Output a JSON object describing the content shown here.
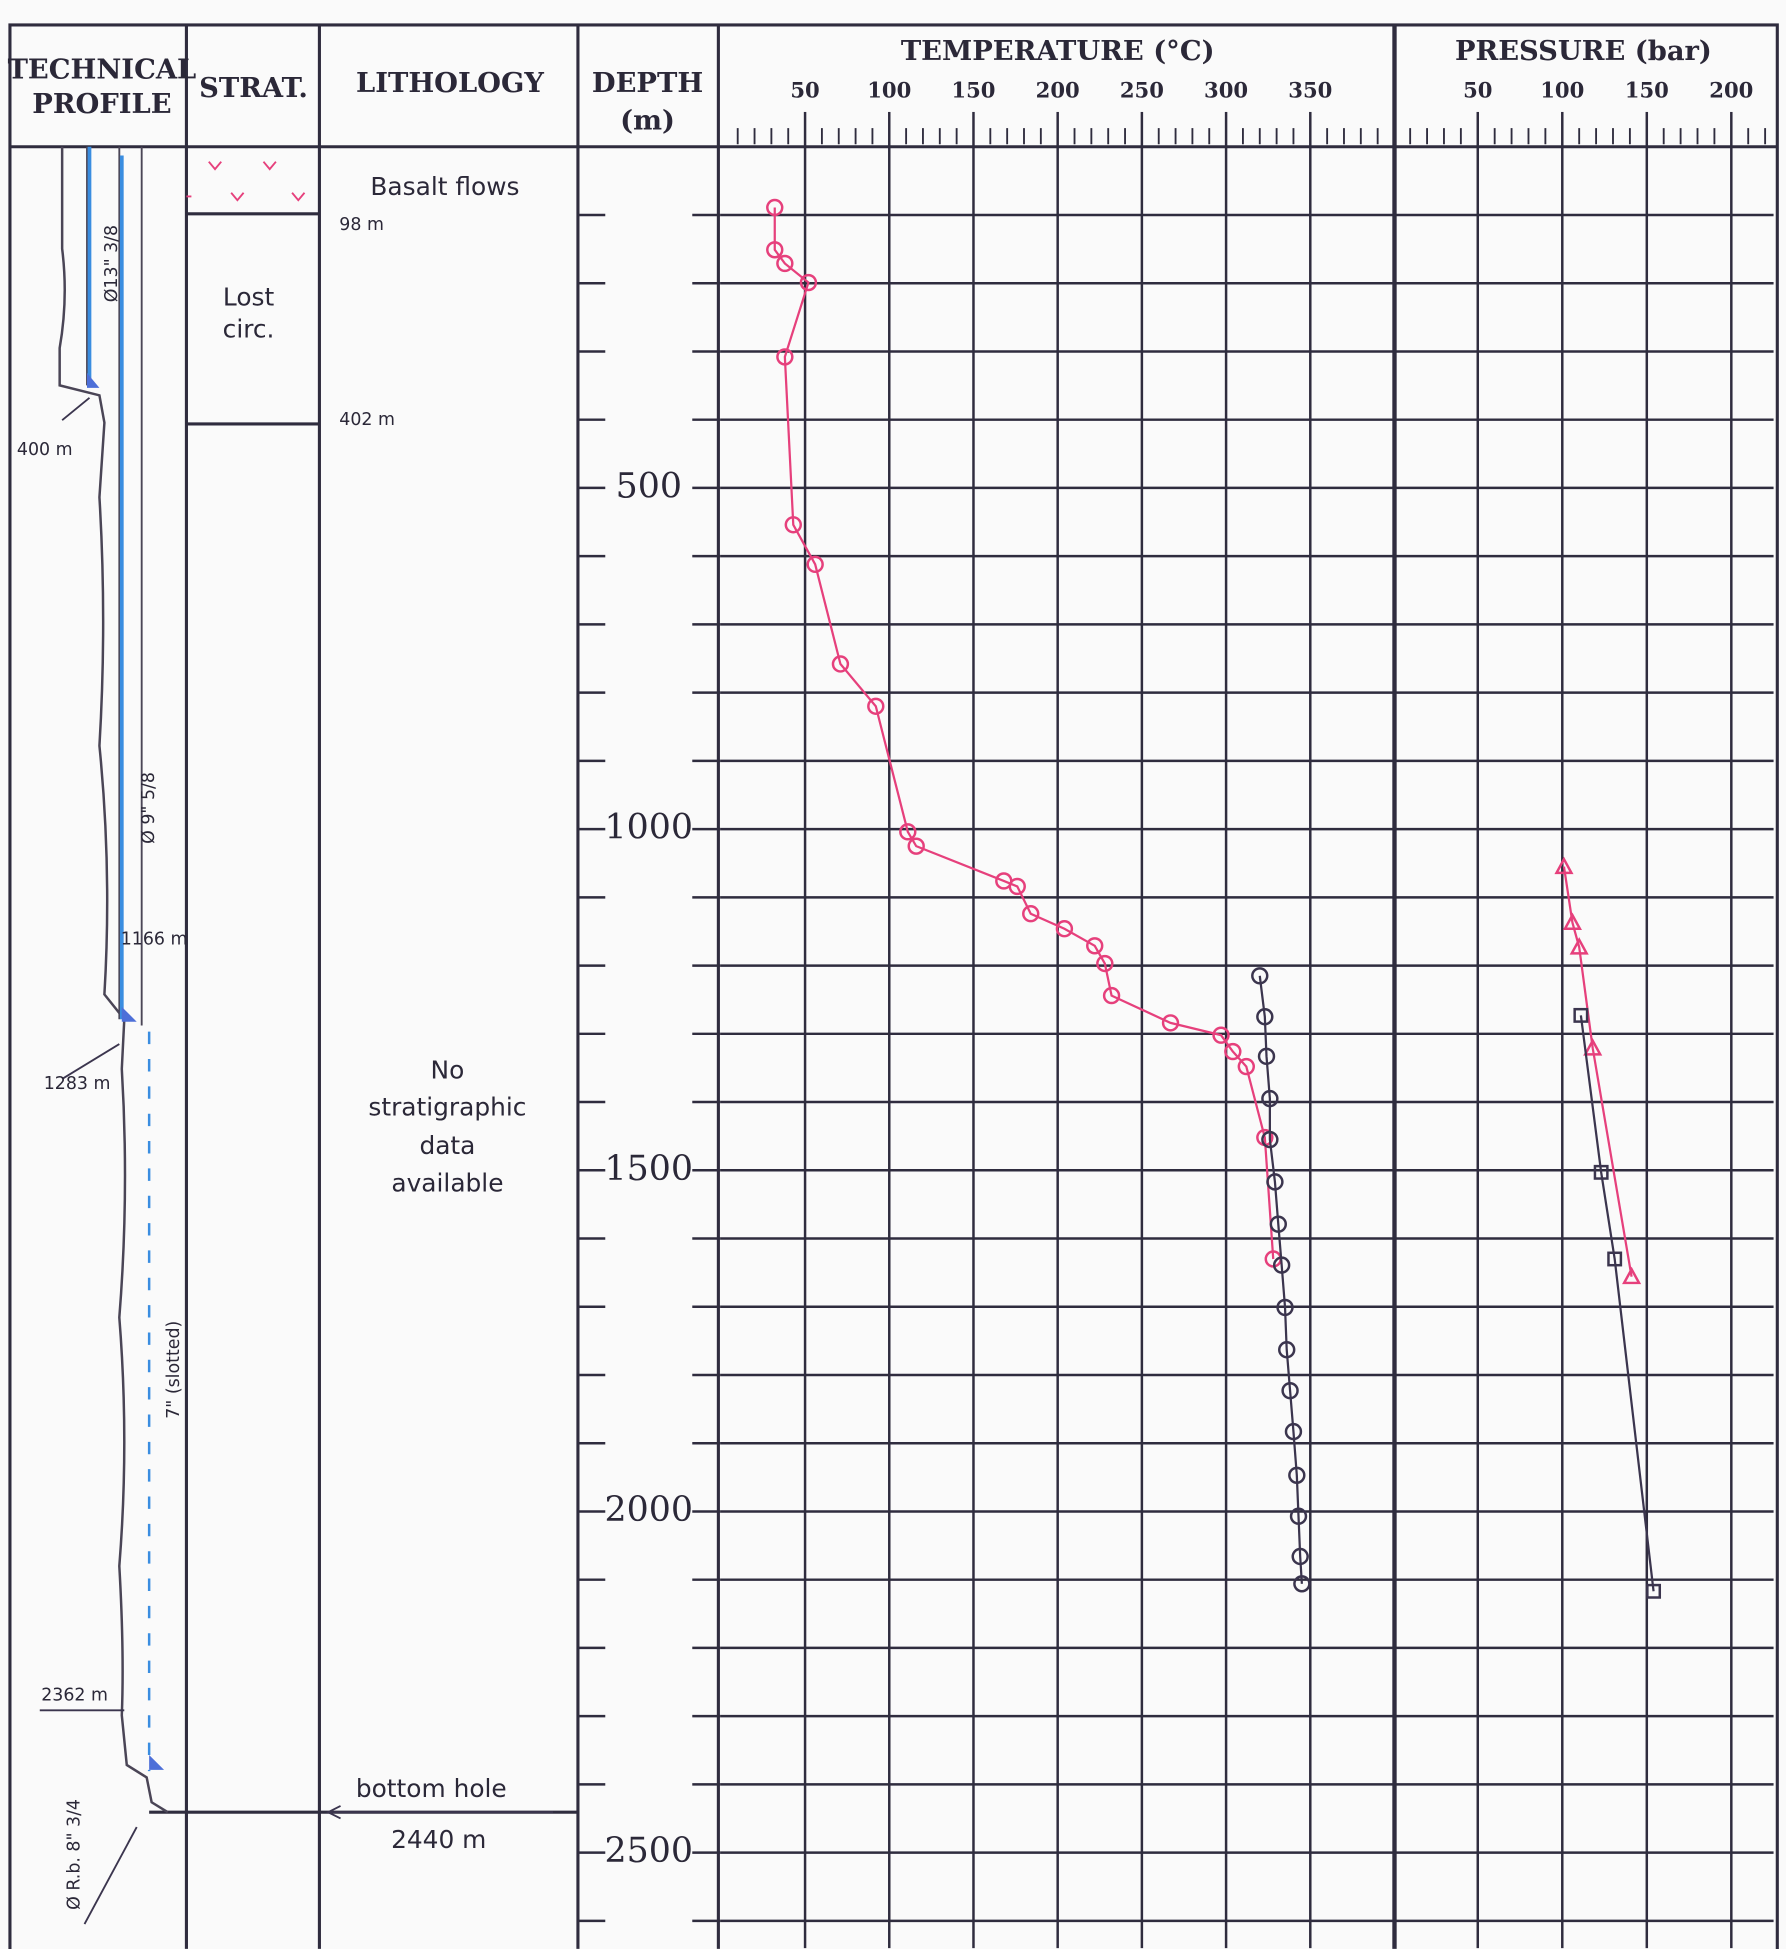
{
  "headers": {
    "technical_profile": [
      "TECHNICAL",
      "PROFILE"
    ],
    "strat": "STRAT.",
    "lithology": "LITHOLOGY"
  },
  "technical_profile": {
    "casing_1": "Ø13\" 3/8",
    "depth_1": "400 m",
    "casing_2": "Ø 9\" 5/8",
    "depth_2": "1166 m",
    "depth_3": "1283 m",
    "liner": "7\" (slotted)",
    "depth_4": "2362 m",
    "open_hole": "Ø R.b. 8\" 3/4"
  },
  "strat": {
    "lost_circ": [
      "Lost",
      "circ."
    ]
  },
  "lithology": {
    "basalt": "Basalt flows",
    "depth_1": "98 m",
    "depth_2": "402 m",
    "no_data": [
      "No",
      "stratigraphic",
      "data",
      "available"
    ],
    "bottom": "bottom hole",
    "bottom_depth": "2440 m"
  },
  "chart_data": [
    {
      "type": "line",
      "title": "TEMPERATURE (°C)",
      "ylabel": [
        "DEPTH",
        "(m)"
      ],
      "xlim": [
        0,
        400
      ],
      "xticks": [
        50,
        100,
        150,
        200,
        250,
        300,
        350
      ],
      "xminor": [
        10,
        20,
        30,
        40,
        60,
        70,
        80,
        90,
        110,
        120,
        130,
        140,
        160,
        170,
        180,
        190,
        210,
        220,
        230,
        240,
        260,
        270,
        280,
        290,
        310,
        320,
        330,
        340,
        360,
        370,
        380,
        390
      ],
      "xgrid": [
        50,
        100,
        150,
        200,
        250,
        300,
        350
      ],
      "ylim": [
        0,
        2640
      ],
      "yticks": [
        500,
        1000,
        1500,
        2000,
        2500
      ],
      "ygrid": [
        100,
        200,
        300,
        400,
        500,
        600,
        700,
        800,
        900,
        1000,
        1100,
        1200,
        1300,
        1400,
        1500,
        1600,
        1700,
        1800,
        1900,
        2000,
        2100,
        2200,
        2300,
        2400,
        2500,
        2600
      ],
      "series": [
        {
          "color": "#e6407c",
          "marker": "circle",
          "x": [
            32,
            32,
            38,
            52,
            38,
            43,
            56,
            71,
            92,
            111,
            116,
            168,
            176,
            184,
            204,
            222,
            228,
            232,
            267,
            297,
            304,
            312,
            323,
            328
          ],
          "values": [
            89,
            151,
            171,
            199,
            308,
            554,
            612,
            758,
            820,
            1004,
            1025,
            1076,
            1084,
            1124,
            1146,
            1171,
            1197,
            1244,
            1284,
            1302,
            1326,
            1348,
            1452,
            1630
          ]
        },
        {
          "color": "#3b354e",
          "marker": "circle",
          "x": [
            320,
            323,
            324,
            326,
            326,
            329,
            331,
            333,
            335,
            336,
            338,
            340,
            342,
            343,
            344,
            345
          ],
          "values": [
            1215,
            1275,
            1333,
            1395,
            1455,
            1517,
            1579,
            1639,
            1701,
            1763,
            1823,
            1883,
            1947,
            2007,
            2066,
            2106
          ]
        }
      ]
    },
    {
      "type": "line",
      "title": "PRESSURE (bar)",
      "xlim": [
        0,
        225
      ],
      "xticks": [
        50,
        100,
        150,
        200
      ],
      "xminor": [
        10,
        20,
        30,
        40,
        60,
        70,
        80,
        90,
        110,
        120,
        130,
        140,
        160,
        170,
        180,
        190,
        210,
        220
      ],
      "xgrid": [
        50,
        100,
        150,
        200
      ],
      "ylim": [
        0,
        2640
      ],
      "ygrid": [
        100,
        200,
        300,
        400,
        500,
        600,
        700,
        800,
        900,
        1000,
        1100,
        1200,
        1300,
        1400,
        1500,
        1600,
        1700,
        1800,
        1900,
        2000,
        2100,
        2200,
        2300,
        2400,
        2500,
        2600
      ],
      "series": [
        {
          "color": "#e6407c",
          "marker": "triangle",
          "x": [
            101,
            106,
            110,
            118,
            141
          ],
          "values": [
            1055,
            1137,
            1173,
            1321,
            1656
          ]
        },
        {
          "color": "#3b354e",
          "marker": "square",
          "x": [
            111,
            123,
            131,
            154
          ],
          "values": [
            1273,
            1503,
            1630,
            2117
          ]
        }
      ]
    }
  ]
}
